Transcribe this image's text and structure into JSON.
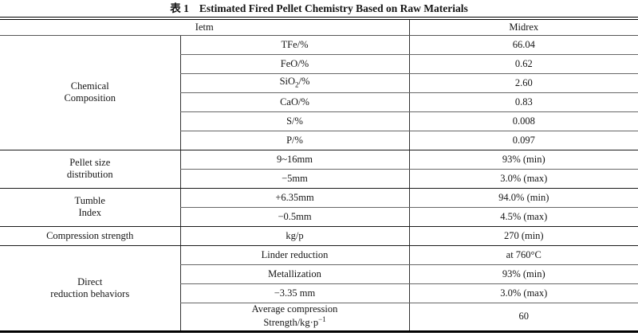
{
  "title": {
    "prefix": "表 1",
    "text": "Estimated Fired Pellet Chemistry Based on Raw Materials"
  },
  "header": {
    "item_col": "Ietm",
    "value_col": "Midrex"
  },
  "sections": [
    {
      "label_lines": [
        "Chemical",
        "Composition"
      ],
      "rows": [
        {
          "param": "TFe/%",
          "value": "66.04"
        },
        {
          "param": "FeO/%",
          "value": "0.62"
        },
        {
          "param_pre": "SiO",
          "param_sub": "2",
          "param_post": "/%",
          "value": "2.60"
        },
        {
          "param": "CaO/%",
          "value": "0.83"
        },
        {
          "param": "S/%",
          "value": "0.008"
        },
        {
          "param": "P/%",
          "value": "0.097"
        }
      ]
    },
    {
      "label_lines": [
        "Pellet size",
        "distribution"
      ],
      "rows": [
        {
          "param": "9~16mm",
          "value": "93% (min)"
        },
        {
          "param": "−5mm",
          "value": "3.0% (max)"
        }
      ]
    },
    {
      "label_lines": [
        "Tumble",
        "Index"
      ],
      "rows": [
        {
          "param": "+6.35mm",
          "value": "94.0% (min)"
        },
        {
          "param": "−0.5mm",
          "value": "4.5% (max)"
        }
      ]
    },
    {
      "label_lines": [
        "Compression strength"
      ],
      "rows": [
        {
          "param": "kg/p",
          "value": "270 (min)"
        }
      ]
    },
    {
      "label_lines": [
        "Direct",
        "reduction behaviors"
      ],
      "rows": [
        {
          "param": "Linder reduction",
          "value": "at 760°C"
        },
        {
          "param": "Metallization",
          "value": "93% (min)"
        },
        {
          "param": "−3.35 mm",
          "value": "3.0% (max)"
        },
        {
          "param_line1": "Average compression",
          "param_line2_pre": "Strength/kg·p",
          "param_line2_sup": "−1",
          "value": "60"
        }
      ]
    }
  ]
}
